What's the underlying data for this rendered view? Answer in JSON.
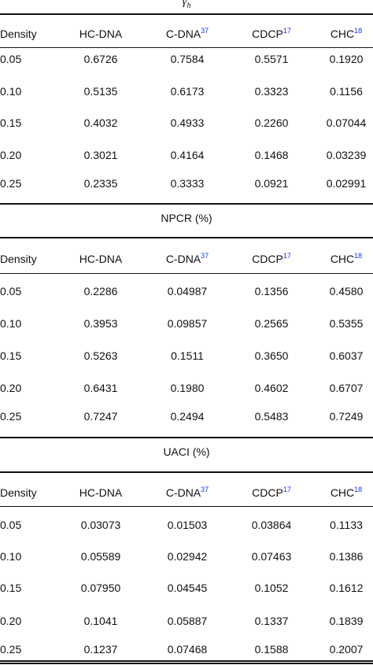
{
  "sections": [
    {
      "title": "γ",
      "title_sub": "h",
      "header": [
        "Density",
        "HC-DNA",
        "C-DNA",
        "CDCP",
        "CHC"
      ],
      "header_refs": [
        "",
        "",
        "37",
        "17",
        "18"
      ],
      "rows": [
        [
          "0.05",
          "0.6726",
          "0.7584",
          "0.5571",
          "0.1920"
        ],
        [
          "0.10",
          "0.5135",
          "0.6173",
          "0.3323",
          "0.1156"
        ],
        [
          "0.15",
          "0.4032",
          "0.4933",
          "0.2260",
          "0.07044"
        ],
        [
          "0.20",
          "0.3021",
          "0.4164",
          "0.1468",
          "0.03239"
        ],
        [
          "0.25",
          "0.2335",
          "0.3333",
          "0.0921",
          "0.02991"
        ]
      ]
    },
    {
      "title": "NPCR (%)",
      "title_sub": "",
      "header": [
        "Density",
        "HC-DNA",
        "C-DNA",
        "CDCP",
        "CHC"
      ],
      "header_refs": [
        "",
        "",
        "37",
        "17",
        "18"
      ],
      "rows": [
        [
          "0.05",
          "0.2286",
          "0.04987",
          "0.1356",
          "0.4580"
        ],
        [
          "0.10",
          "0.3953",
          "0.09857",
          "0.2565",
          "0.5355"
        ],
        [
          "0.15",
          "0.5263",
          "0.1511",
          "0.3650",
          "0.6037"
        ],
        [
          "0.20",
          "0.6431",
          "0.1980",
          "0.4602",
          "0.6707"
        ],
        [
          "0.25",
          "0.7247",
          "0.2494",
          "0.5483",
          "0.7249"
        ]
      ]
    },
    {
      "title": "UACI (%)",
      "title_sub": "",
      "header": [
        "Density",
        "HC-DNA",
        "C-DNA",
        "CDCP",
        "CHC"
      ],
      "header_refs": [
        "",
        "",
        "37",
        "17",
        "18"
      ],
      "rows": [
        [
          "0.05",
          "0.03073",
          "0.01503",
          "0.03864",
          "0.1133"
        ],
        [
          "0.10",
          "0.05589",
          "0.02942",
          "0.07463",
          "0.1386"
        ],
        [
          "0.15",
          "0.07950",
          "0.04545",
          "0.1052",
          "0.1612"
        ],
        [
          "0.20",
          "0.1041",
          "0.05887",
          "0.1337",
          "0.1839"
        ],
        [
          "0.25",
          "0.1237",
          "0.07468",
          "0.1588",
          "0.2007"
        ]
      ]
    }
  ]
}
